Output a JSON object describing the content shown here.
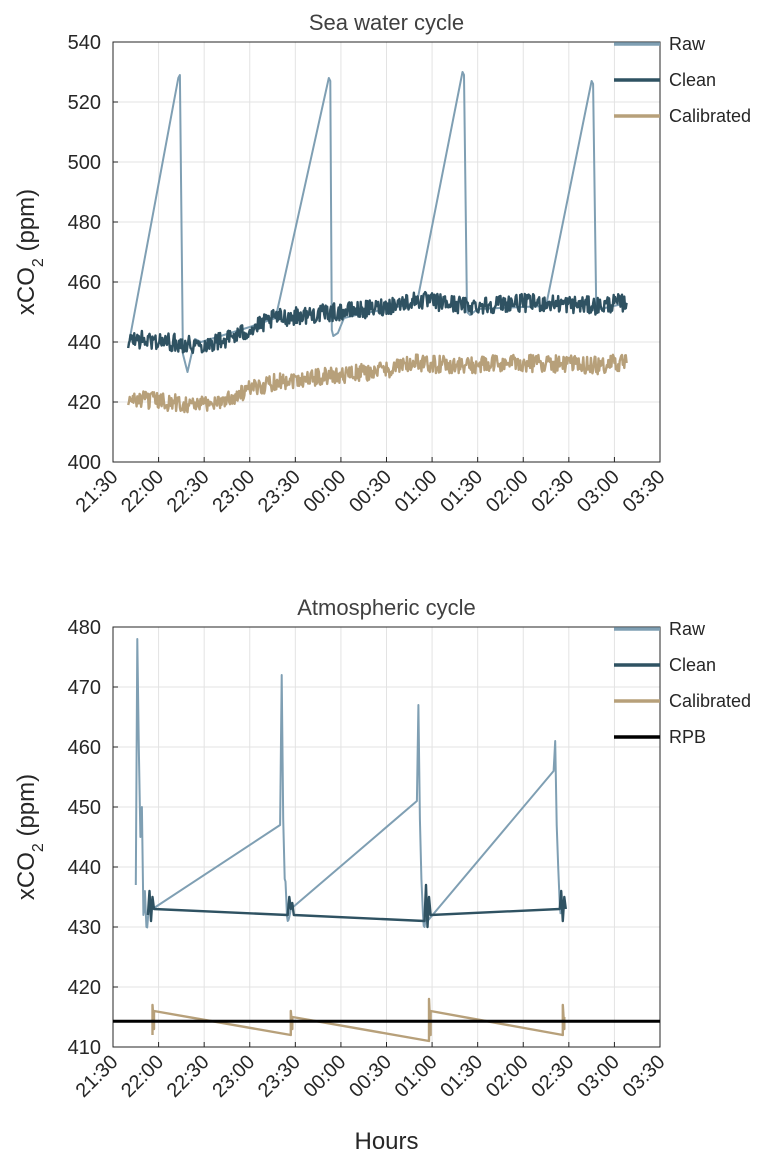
{
  "chart_data": [
    {
      "type": "line",
      "title": "Sea water cycle",
      "ylabel": "xCO",
      "ylabel_sub": "2",
      "ylabel_unit": " (ppm)",
      "xlabel": "",
      "ylim": [
        400,
        540
      ],
      "yticks": [
        400,
        420,
        440,
        460,
        480,
        500,
        520,
        540
      ],
      "ytick_labels": [
        "400",
        "420",
        "440",
        "460",
        "480",
        "500",
        "520",
        "540"
      ],
      "xlim_hours": [
        21.5,
        27.5
      ],
      "xtick_labels": [
        "21:30",
        "22:00",
        "22:30",
        "23:00",
        "23:30",
        "00:00",
        "00:30",
        "01:00",
        "01:30",
        "02:00",
        "02:30",
        "03:00",
        "03:30"
      ],
      "grid": true,
      "legend": {
        "placement": "top-right-outside"
      },
      "series": [
        {
          "name": "Raw",
          "color": "#7f9fb3",
          "x": [
            "21:40",
            "21:41",
            "22:13",
            "22:14",
            "22:16",
            "22:19",
            "22:24",
            "22:28",
            "23:00",
            "23:17",
            "23:52",
            "23:53",
            "23:54",
            "23:55",
            "23:58",
            "00:02",
            "00:10",
            "00:50",
            "01:20",
            "01:21",
            "01:23",
            "01:25",
            "01:30",
            "02:15",
            "02:45",
            "02:46",
            "02:48",
            "02:51",
            "03:08"
          ],
          "y": [
            438,
            441,
            528,
            529,
            436,
            430,
            441,
            440,
            445,
            448,
            528,
            527,
            444,
            442,
            443,
            448,
            449,
            453,
            530,
            529,
            450,
            449,
            451,
            452,
            527,
            526,
            452,
            451,
            453
          ]
        },
        {
          "name": "Clean",
          "color": "#2f5262",
          "x": [
            "21:40",
            "21:42",
            "22:28",
            "22:45",
            "23:00",
            "23:17",
            "23:58",
            "00:20",
            "00:40",
            "00:50",
            "01:25",
            "01:50",
            "02:15",
            "02:51",
            "03:00",
            "03:08"
          ],
          "y": [
            438,
            441,
            439,
            441,
            444,
            448,
            450,
            451,
            453,
            454,
            452,
            453,
            453,
            452,
            453,
            453
          ],
          "noise": 3
        },
        {
          "name": "Calibrated",
          "color": "#b7a07a",
          "x": [
            "21:40",
            "21:42",
            "22:28",
            "22:45",
            "23:00",
            "23:17",
            "23:58",
            "00:20",
            "00:40",
            "00:50",
            "01:25",
            "01:50",
            "02:15",
            "02:51",
            "03:00",
            "03:08"
          ],
          "y": [
            419,
            421,
            419,
            421,
            424,
            427,
            429,
            430,
            432,
            433,
            432,
            433,
            433,
            432,
            433,
            433
          ],
          "noise": 3
        }
      ]
    },
    {
      "type": "line",
      "title": "Atmospheric cycle",
      "ylabel": "xCO",
      "ylabel_sub": "2",
      "ylabel_unit": " (ppm)",
      "xlabel": "Hours",
      "ylim": [
        410,
        480
      ],
      "yticks": [
        410,
        420,
        430,
        440,
        450,
        460,
        470,
        480
      ],
      "ytick_labels": [
        "410",
        "420",
        "430",
        "440",
        "450",
        "460",
        "470",
        "480"
      ],
      "xlim_hours": [
        21.5,
        27.5
      ],
      "xtick_labels": [
        "21:30",
        "22:00",
        "22:30",
        "23:00",
        "23:30",
        "00:00",
        "00:30",
        "01:00",
        "01:30",
        "02:00",
        "02:30",
        "03:00",
        "03:30"
      ],
      "grid": true,
      "legend": {
        "placement": "top-right-outside"
      },
      "series": [
        {
          "name": "Raw",
          "color": "#7f9fb3",
          "x": [
            "21:45",
            "21:46",
            "21:47",
            "21:48",
            "21:49",
            "21:50",
            "21:51",
            "21:52",
            "21:54",
            "21:56",
            "23:20",
            "23:21",
            "23:22",
            "23:23",
            "23:24",
            "23:25",
            "23:27",
            "00:50",
            "00:51",
            "00:52",
            "00:53",
            "00:54",
            "00:55",
            "00:57",
            "02:20",
            "02:21",
            "02:22",
            "02:23",
            "02:24",
            "02:26"
          ],
          "y": [
            437,
            478,
            460,
            445,
            450,
            432,
            436,
            430,
            434,
            433,
            447,
            472,
            448,
            438,
            435,
            431,
            433,
            451,
            467,
            448,
            438,
            432,
            430,
            431,
            456,
            461,
            447,
            440,
            434,
            433
          ],
          "noise": 1.5
        },
        {
          "name": "Clean",
          "color": "#2f5262",
          "x": [
            "21:53",
            "21:54",
            "21:55",
            "21:56",
            "21:57",
            "23:25",
            "23:26",
            "23:27",
            "23:28",
            "23:29",
            "00:55",
            "00:56",
            "00:57",
            "00:58",
            "00:59",
            "02:24",
            "02:25",
            "02:26",
            "02:27",
            "02:28"
          ],
          "y": [
            432,
            436,
            431,
            435,
            433,
            432,
            435,
            433,
            434,
            432,
            431,
            437,
            430,
            435,
            432,
            433,
            436,
            431,
            435,
            433
          ]
        },
        {
          "name": "Calibrated",
          "color": "#b7a07a",
          "x": [
            "21:56",
            "21:56",
            "21:57",
            "21:57",
            "23:27",
            "23:27",
            "23:28",
            "23:28",
            "00:58",
            "00:58",
            "00:59",
            "00:59",
            "02:26",
            "02:26",
            "02:27",
            "02:27"
          ],
          "y": [
            412,
            417,
            413,
            416,
            412,
            416,
            413,
            415,
            411,
            418,
            412,
            416,
            412,
            417,
            413,
            415
          ]
        },
        {
          "name": "RPB",
          "color": "#000000",
          "x": [
            "21:30",
            "03:30"
          ],
          "y": [
            414.3,
            414.3
          ]
        }
      ]
    }
  ]
}
